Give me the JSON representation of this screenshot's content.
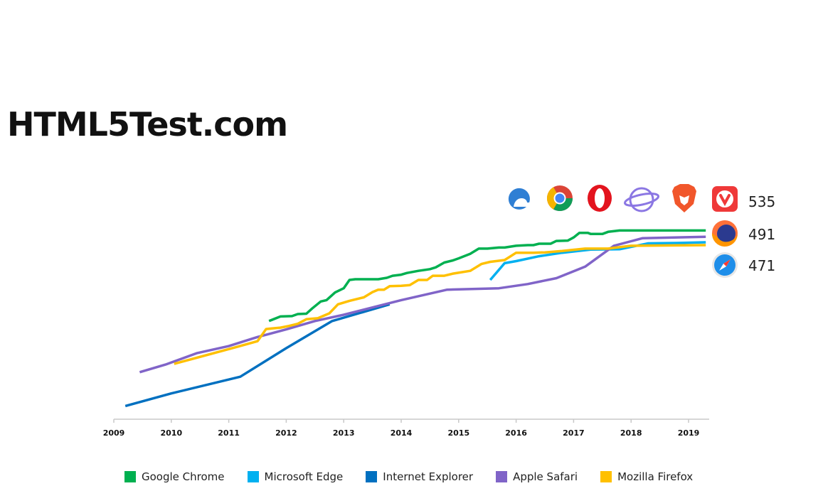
{
  "title": "HTML5Test.com",
  "scores": [
    "535",
    "491",
    "471"
  ],
  "logos": [
    "edge-icon",
    "chrome-icon",
    "opera-icon",
    "samsung-internet-icon",
    "brave-icon",
    "vivaldi-icon",
    "firefox-icon",
    "safari-icon"
  ],
  "chart_data": {
    "type": "line",
    "xlim": [
      2009,
      2019.3
    ],
    "ylim": [
      0,
      555
    ],
    "x_ticks": [
      "2009",
      "2010",
      "2011",
      "2012",
      "2013",
      "2014",
      "2015",
      "2016",
      "2017",
      "2018",
      "2019"
    ],
    "grid": false,
    "legend_position": "bottom",
    "series": [
      {
        "name": "Google Chrome",
        "color": "#00b050",
        "points": [
          [
            2011.7,
            282
          ],
          [
            2011.9,
            295
          ],
          [
            2012.1,
            296
          ],
          [
            2012.2,
            302
          ],
          [
            2012.35,
            303
          ],
          [
            2012.45,
            318
          ],
          [
            2012.6,
            338
          ],
          [
            2012.7,
            342
          ],
          [
            2012.85,
            364
          ],
          [
            2013.0,
            376
          ],
          [
            2013.1,
            400
          ],
          [
            2013.2,
            402
          ],
          [
            2013.4,
            402
          ],
          [
            2013.6,
            402
          ],
          [
            2013.75,
            406
          ],
          [
            2013.85,
            412
          ],
          [
            2014.0,
            415
          ],
          [
            2014.1,
            420
          ],
          [
            2014.3,
            426
          ],
          [
            2014.5,
            431
          ],
          [
            2014.6,
            436
          ],
          [
            2014.75,
            450
          ],
          [
            2014.9,
            456
          ],
          [
            2015.0,
            462
          ],
          [
            2015.2,
            475
          ],
          [
            2015.35,
            490
          ],
          [
            2015.5,
            490
          ],
          [
            2015.7,
            493
          ],
          [
            2015.8,
            493
          ],
          [
            2016.0,
            498
          ],
          [
            2016.2,
            500
          ],
          [
            2016.3,
            500
          ],
          [
            2016.4,
            504
          ],
          [
            2016.6,
            504
          ],
          [
            2016.7,
            512
          ],
          [
            2016.9,
            513
          ],
          [
            2017.0,
            522
          ],
          [
            2017.1,
            535
          ],
          [
            2017.25,
            535
          ],
          [
            2017.3,
            532
          ],
          [
            2017.5,
            532
          ],
          [
            2017.6,
            538
          ],
          [
            2017.8,
            542
          ],
          [
            2018.0,
            542
          ],
          [
            2019.3,
            542
          ]
        ]
      },
      {
        "name": "Microsoft Edge",
        "color": "#00b0f0",
        "points": [
          [
            2015.55,
            400
          ],
          [
            2015.8,
            448
          ],
          [
            2016.0,
            454
          ],
          [
            2016.4,
            468
          ],
          [
            2016.8,
            478
          ],
          [
            2017.3,
            487
          ],
          [
            2017.8,
            488
          ],
          [
            2018.3,
            505
          ],
          [
            2018.8,
            506
          ],
          [
            2019.3,
            508
          ]
        ]
      },
      {
        "name": "Internet Explorer",
        "color": "#0070c0",
        "points": [
          [
            2009.2,
            38
          ],
          [
            2010.0,
            74
          ],
          [
            2011.2,
            122
          ],
          [
            2012.0,
            204
          ],
          [
            2012.8,
            282
          ],
          [
            2013.8,
            330
          ]
        ]
      },
      {
        "name": "Apple Safari",
        "color": "#8064c8",
        "points": [
          [
            2009.45,
            135
          ],
          [
            2009.9,
            157
          ],
          [
            2010.45,
            190
          ],
          [
            2011.0,
            210
          ],
          [
            2011.5,
            236
          ],
          [
            2012.0,
            258
          ],
          [
            2012.5,
            282
          ],
          [
            2013.0,
            300
          ],
          [
            2014.0,
            342
          ],
          [
            2014.8,
            372
          ],
          [
            2015.7,
            376
          ],
          [
            2016.2,
            388
          ],
          [
            2016.7,
            405
          ],
          [
            2017.2,
            438
          ],
          [
            2017.7,
            498
          ],
          [
            2018.2,
            520
          ],
          [
            2019.3,
            524
          ]
        ]
      },
      {
        "name": "Mozilla Firefox",
        "color": "#ffc000",
        "points": [
          [
            2010.05,
            159
          ],
          [
            2011.15,
            208
          ],
          [
            2011.5,
            224
          ],
          [
            2011.65,
            259
          ],
          [
            2011.9,
            263
          ],
          [
            2012.05,
            268
          ],
          [
            2012.2,
            274
          ],
          [
            2012.35,
            287
          ],
          [
            2012.55,
            290
          ],
          [
            2012.75,
            304
          ],
          [
            2012.9,
            330
          ],
          [
            2013.1,
            340
          ],
          [
            2013.35,
            350
          ],
          [
            2013.5,
            365
          ],
          [
            2013.6,
            372
          ],
          [
            2013.7,
            372
          ],
          [
            2013.8,
            382
          ],
          [
            2014.0,
            383
          ],
          [
            2014.15,
            385
          ],
          [
            2014.3,
            400
          ],
          [
            2014.45,
            400
          ],
          [
            2014.55,
            412
          ],
          [
            2014.75,
            412
          ],
          [
            2014.9,
            418
          ],
          [
            2015.2,
            426
          ],
          [
            2015.4,
            446
          ],
          [
            2015.55,
            452
          ],
          [
            2015.8,
            457
          ],
          [
            2016.0,
            478
          ],
          [
            2016.3,
            478
          ],
          [
            2016.5,
            479
          ],
          [
            2016.8,
            483
          ],
          [
            2017.2,
            490
          ],
          [
            2017.6,
            490
          ],
          [
            2018.0,
            498
          ],
          [
            2019.3,
            500
          ]
        ]
      }
    ]
  }
}
